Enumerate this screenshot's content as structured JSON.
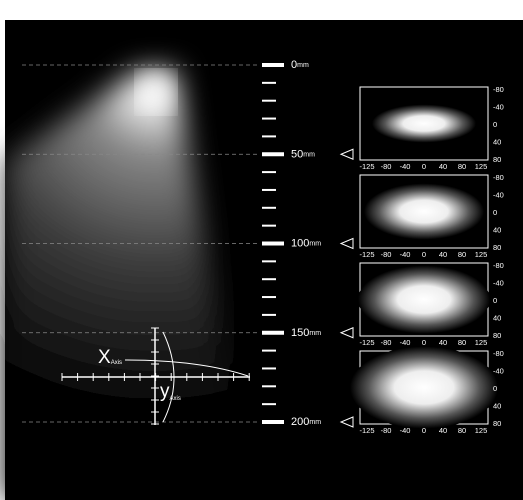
{
  "scale": {
    "marks": [
      "0",
      "50",
      "100",
      "150",
      "200"
    ],
    "unit": "mm"
  },
  "axis_legend": {
    "x": {
      "letter": "X",
      "sub": "Axis"
    },
    "y": {
      "letter": "y",
      "sub": "Axis"
    }
  },
  "panels": {
    "y_labels": [
      "-80",
      "-40",
      "0",
      "40",
      "80"
    ],
    "x_labels": [
      "-125",
      "-80",
      "-40",
      "0",
      "40",
      "80",
      "125"
    ]
  }
}
